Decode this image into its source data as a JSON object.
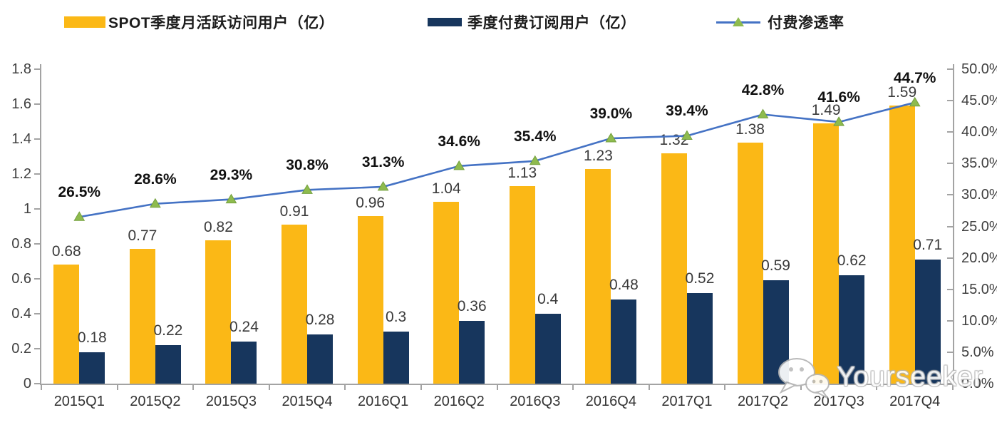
{
  "legend": {
    "items": [
      {
        "label": "SPOT季度月活跃访问用户（亿）",
        "color": "#FBB816",
        "type": "bar"
      },
      {
        "label": "季度付费订阅用户（亿）",
        "color": "#17365D",
        "type": "bar"
      },
      {
        "label": "付费渗透率",
        "color": "#4472C4",
        "marker_color": "#8EBB4E",
        "type": "line"
      }
    ]
  },
  "watermark": {
    "text": "Yourseeker",
    "icon": "wechat-icon"
  },
  "chart_data": {
    "type": "bar+line",
    "categories": [
      "2015Q1",
      "2015Q2",
      "2015Q3",
      "2015Q4",
      "2016Q1",
      "2016Q2",
      "2016Q3",
      "2016Q4",
      "2017Q1",
      "2017Q2",
      "2017Q3",
      "2017Q4"
    ],
    "series": [
      {
        "name": "SPOT季度月活跃访问用户（亿）",
        "type": "bar",
        "axis": "left",
        "color": "#FBB816",
        "values": [
          0.68,
          0.77,
          0.82,
          0.91,
          0.96,
          1.04,
          1.13,
          1.23,
          1.32,
          1.38,
          1.49,
          1.59
        ],
        "labels": [
          "0.68",
          "0.77",
          "0.82",
          "0.91",
          "0.96",
          "1.04",
          "1.13",
          "1.23",
          "1.32",
          "1.38",
          "1.49",
          "1.59"
        ]
      },
      {
        "name": "季度付费订阅用户（亿）",
        "type": "bar",
        "axis": "left",
        "color": "#17365D",
        "values": [
          0.18,
          0.22,
          0.24,
          0.28,
          0.3,
          0.36,
          0.4,
          0.48,
          0.52,
          0.59,
          0.62,
          0.71
        ],
        "labels": [
          "0.18",
          "0.22",
          "0.24",
          "0.28",
          "0.3",
          "0.36",
          "0.4",
          "0.48",
          "0.52",
          "0.59",
          "0.62",
          "0.71"
        ]
      },
      {
        "name": "付费渗透率",
        "type": "line",
        "axis": "right",
        "color": "#4472C4",
        "marker": "triangle-up",
        "marker_color": "#8EBB4E",
        "values": [
          26.5,
          28.6,
          29.3,
          30.8,
          31.3,
          34.6,
          35.4,
          39.0,
          39.4,
          42.8,
          41.6,
          44.7
        ],
        "labels": [
          "26.5%",
          "28.6%",
          "29.3%",
          "30.8%",
          "31.3%",
          "34.6%",
          "35.4%",
          "39.0%",
          "39.4%",
          "42.8%",
          "41.6%",
          "44.7%"
        ]
      }
    ],
    "left_axis": {
      "min": 0,
      "max": 1.8,
      "step": 0.2,
      "ticks": [
        "0",
        "0.2",
        "0.4",
        "0.6",
        "0.8",
        "1",
        "1.2",
        "1.4",
        "1.6",
        "1.8"
      ]
    },
    "right_axis": {
      "min": 0,
      "max": 50,
      "step": 5,
      "ticks": [
        "0.0%",
        "5.0%",
        "10.0%",
        "15.0%",
        "20.0%",
        "25.0%",
        "30.0%",
        "35.0%",
        "40.0%",
        "45.0%",
        "50.0%"
      ]
    },
    "grid": false,
    "legend_position": "top",
    "title": "",
    "xlabel": "",
    "ylabel": ""
  }
}
